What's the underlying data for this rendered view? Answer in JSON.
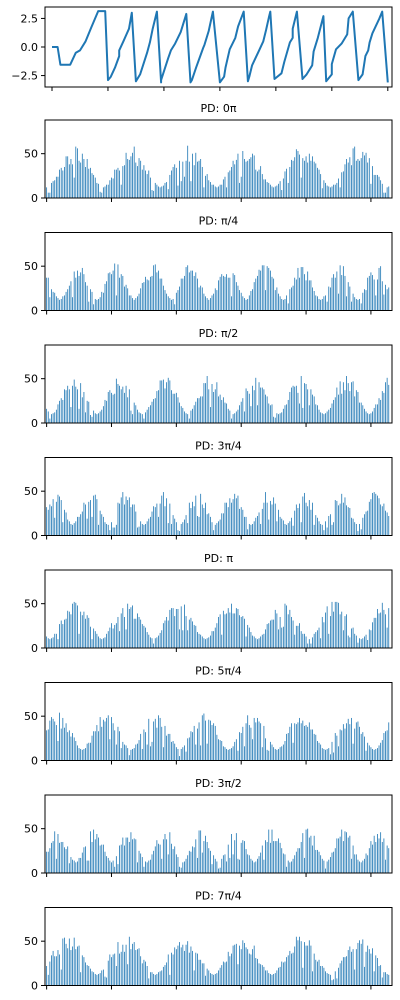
{
  "colors": {
    "series": "#1f77b4",
    "axes": "#000000",
    "background": "#ffffff"
  },
  "chart_data": [
    {
      "type": "line",
      "title": "",
      "ylim": [
        -3.5,
        3.5
      ],
      "yticks": [
        2.5,
        0.0,
        -2.5
      ],
      "ytick_labels": [
        "2.5",
        "0.0",
        "−2.5"
      ],
      "xlim": [
        -5,
        243
      ],
      "xticks": [
        0,
        40,
        80,
        120,
        160,
        200,
        240
      ],
      "x": [
        0,
        4,
        6,
        8,
        13,
        17,
        20,
        24,
        28,
        33,
        38,
        40,
        42,
        45,
        48,
        48,
        51,
        55,
        57,
        60,
        63,
        68,
        70,
        72,
        75,
        78,
        78,
        83,
        85,
        88,
        92,
        96,
        99,
        100,
        103,
        108,
        109,
        112,
        115,
        120,
        123,
        124,
        127,
        131,
        133,
        137,
        140,
        141,
        143,
        148,
        151,
        153,
        155,
        156,
        159,
        164,
        166,
        170,
        172,
        172,
        175,
        179,
        182,
        186,
        187,
        190,
        194,
        196,
        200,
        200,
        203,
        207,
        211,
        212,
        215,
        219,
        222,
        224,
        226,
        227,
        229,
        234,
        236,
        240
      ],
      "y": [
        0.0,
        0.0,
        -1.55,
        -1.55,
        -1.55,
        -0.5,
        -0.3,
        0.5,
        1.7,
        3.14,
        3.14,
        -2.9,
        -2.6,
        -1.8,
        -0.8,
        -0.3,
        0.5,
        1.6,
        3.0,
        -3.0,
        -2.4,
        -0.5,
        0.4,
        1.6,
        3.1,
        -3.1,
        -2.9,
        -1.0,
        -0.3,
        0.3,
        1.3,
        2.9,
        -3.1,
        -2.9,
        -1.8,
        -0.1,
        0.2,
        1.4,
        3.1,
        -3.1,
        -2.6,
        -1.8,
        -0.2,
        0.8,
        1.8,
        3.1,
        -3.0,
        -2.6,
        -1.6,
        -0.3,
        0.5,
        1.5,
        2.6,
        3.1,
        -2.8,
        -2.3,
        -1.3,
        0.4,
        0.8,
        1.6,
        3.1,
        -2.8,
        -2.4,
        -1.6,
        -0.4,
        0.8,
        2.7,
        -3.0,
        -2.4,
        -1.5,
        -0.2,
        0.3,
        1.1,
        2.5,
        3.1,
        -2.9,
        -2.4,
        -0.8,
        -0.3,
        0.4,
        1.2,
        2.5,
        3.1,
        -3.1
      ]
    },
    {
      "type": "bar",
      "title": "PD: 0π",
      "ylim": [
        0,
        88
      ],
      "yticks": [
        0,
        50
      ],
      "ytick_labels": [
        "0",
        "50"
      ],
      "xlim": [
        -1,
        213
      ],
      "xticks": [
        0,
        40,
        80,
        120,
        160,
        200
      ],
      "period": 35,
      "phase": 0,
      "amplitude": 48,
      "baseline": 12,
      "values": []
    },
    {
      "type": "bar",
      "title": "PD: π/4",
      "ylim": [
        0,
        88
      ],
      "yticks": [
        0,
        50
      ],
      "ytick_labels": [
        "0",
        "50"
      ],
      "xlim": [
        -1,
        213
      ],
      "xticks": [
        0,
        40,
        80,
        120,
        160,
        200
      ],
      "period": 23,
      "phase": 15,
      "amplitude": 42,
      "baseline": 12,
      "values": []
    },
    {
      "type": "bar",
      "title": "PD: π/2",
      "ylim": [
        0,
        88
      ],
      "yticks": [
        0,
        50
      ],
      "ytick_labels": [
        "0",
        "50"
      ],
      "xlim": [
        -1,
        213
      ],
      "xticks": [
        0,
        40,
        80,
        120,
        160,
        200
      ],
      "period": 28,
      "phase": 25,
      "amplitude": 45,
      "baseline": 10,
      "values": []
    },
    {
      "type": "bar",
      "title": "PD: 3π/4",
      "ylim": [
        0,
        88
      ],
      "yticks": [
        0,
        50
      ],
      "ytick_labels": [
        "0",
        "50"
      ],
      "xlim": [
        -1,
        213
      ],
      "xticks": [
        0,
        40,
        80,
        120,
        160,
        200
      ],
      "period": 22,
      "phase": 28,
      "amplitude": 40,
      "baseline": 12,
      "values": []
    },
    {
      "type": "bar",
      "title": "PD: π",
      "ylim": [
        0,
        88
      ],
      "yticks": [
        0,
        50
      ],
      "ytick_labels": [
        "0",
        "50"
      ],
      "xlim": [
        -1,
        213
      ],
      "xticks": [
        0,
        40,
        80,
        120,
        160,
        200
      ],
      "period": 32,
      "phase": 30,
      "amplitude": 46,
      "baseline": 10,
      "values": []
    },
    {
      "type": "bar",
      "title": "PD: 5π/4",
      "ylim": [
        0,
        88
      ],
      "yticks": [
        0,
        50
      ],
      "ytick_labels": [
        "0",
        "50"
      ],
      "xlim": [
        -1,
        213
      ],
      "xticks": [
        0,
        40,
        80,
        120,
        160,
        200
      ],
      "period": 30,
      "phase": 8,
      "amplitude": 44,
      "baseline": 12,
      "values": []
    },
    {
      "type": "bar",
      "title": "PD: 3π/2",
      "ylim": [
        0,
        88
      ],
      "yticks": [
        0,
        50
      ],
      "ytick_labels": [
        "0",
        "50"
      ],
      "xlim": [
        -1,
        213
      ],
      "xticks": [
        0,
        40,
        80,
        120,
        160,
        200
      ],
      "period": 22,
      "phase": 4,
      "amplitude": 40,
      "baseline": 12,
      "values": []
    },
    {
      "type": "bar",
      "title": "PD: 7π/4",
      "ylim": [
        0,
        88
      ],
      "yticks": [
        0,
        50
      ],
      "ytick_labels": [
        "0",
        "50"
      ],
      "xlim": [
        -1,
        213
      ],
      "xticks": [
        0,
        40,
        80,
        120,
        160,
        200
      ],
      "period": 36,
      "phase": 5,
      "amplitude": 47,
      "baseline": 12,
      "values": []
    }
  ]
}
